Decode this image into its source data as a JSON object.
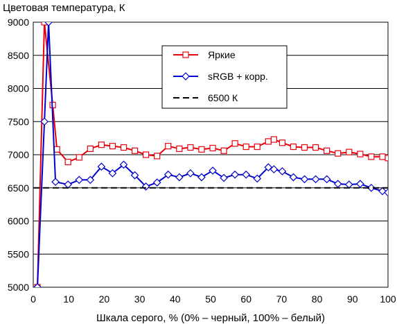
{
  "chart_data": {
    "type": "line",
    "title": "",
    "ylabel": "Цветовая температура, К",
    "xlabel": "Шкала серого, % (0% – черный, 100% – белый)",
    "xlim": [
      0,
      100
    ],
    "ylim": [
      5000,
      9000
    ],
    "xticks": [
      0,
      10,
      20,
      30,
      40,
      50,
      60,
      70,
      80,
      90,
      100
    ],
    "yticks": [
      5000,
      5500,
      6000,
      6500,
      7000,
      7500,
      8000,
      8500,
      9000
    ],
    "grid": "horizontal",
    "legend_position": "top-right",
    "series": [
      {
        "name": "Яркие",
        "color": "#e8000b",
        "marker": "square",
        "line": "solid",
        "x": [
          1.18,
          3.14,
          5.49,
          6.67,
          9.8,
          12.94,
          16.08,
          19.22,
          22.35,
          25.49,
          28.63,
          31.76,
          34.9,
          38.04,
          41.18,
          44.31,
          47.45,
          50.59,
          53.73,
          56.86,
          60.0,
          63.14,
          66.27,
          67.84,
          70.2,
          73.33,
          76.47,
          79.61,
          82.75,
          85.88,
          89.02,
          92.16,
          95.29,
          98.43,
          100.0
        ],
        "y": [
          5000,
          9000,
          7750,
          7080,
          6890,
          6960,
          7090,
          7150,
          7130,
          7110,
          7060,
          7000,
          6980,
          7130,
          7090,
          7110,
          7080,
          7100,
          7060,
          7170,
          7120,
          7120,
          7200,
          7230,
          7180,
          7120,
          7110,
          7110,
          7060,
          7020,
          7040,
          7010,
          6970,
          6970,
          6950
        ]
      },
      {
        "name": "sRGB + корр.",
        "color": "#0000cc",
        "marker": "diamond",
        "line": "solid",
        "x": [
          1.18,
          3.14,
          4.31,
          6.27,
          9.8,
          12.94,
          16.08,
          19.22,
          22.35,
          25.49,
          28.63,
          31.76,
          34.9,
          38.04,
          41.18,
          44.31,
          47.45,
          50.59,
          53.73,
          56.86,
          60.0,
          63.14,
          66.27,
          67.84,
          70.2,
          73.33,
          76.47,
          79.61,
          82.75,
          85.88,
          89.02,
          92.16,
          95.29,
          98.43,
          100.0
        ],
        "y": [
          5000,
          7500,
          9000,
          6590,
          6550,
          6620,
          6620,
          6820,
          6720,
          6850,
          6690,
          6520,
          6580,
          6700,
          6660,
          6720,
          6660,
          6760,
          6650,
          6700,
          6700,
          6640,
          6810,
          6780,
          6750,
          6660,
          6630,
          6630,
          6630,
          6560,
          6550,
          6560,
          6500,
          6450,
          6430
        ]
      },
      {
        "name": "6500 К",
        "color": "#000000",
        "marker": "none",
        "line": "dashed",
        "x": [
          0,
          100
        ],
        "y": [
          6500,
          6500
        ]
      }
    ]
  }
}
